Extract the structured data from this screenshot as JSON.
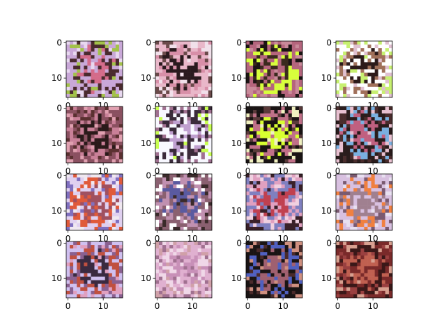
{
  "figure": {
    "grid": {
      "rows": 4,
      "cols": 4
    },
    "axes": {
      "xticks": [
        "0",
        "10"
      ],
      "yticks": [
        "0",
        "10"
      ],
      "tick_values": [
        0,
        10
      ],
      "pixels_per_side": 16
    },
    "panels": [
      {
        "description": "pixelated face, lavender/pink tones, bright accents at bottom-right",
        "palette": [
          "#c9a8d8",
          "#d46b8a",
          "#4a2a2e",
          "#e8d8f0",
          "#a3c24a"
        ]
      },
      {
        "description": "pixelated face, pink skin with dark hair left, light background",
        "palette": [
          "#e9b7c9",
          "#2a1a1e",
          "#d88fa8",
          "#f1e0ea",
          "#6b4a4a"
        ]
      },
      {
        "description": "pixelated face, dark hair, lime-green highlights",
        "palette": [
          "#b5657d",
          "#3b2a1e",
          "#d8ff3c",
          "#c98a9a",
          "#1c1414"
        ]
      },
      {
        "description": "pixelated face, white background with green and yellow, dark hair",
        "palette": [
          "#ffffff",
          "#2c1a1a",
          "#a0705a",
          "#c7f070",
          "#e0c0d0"
        ]
      },
      {
        "description": "pixelated face, dark brown hair, pinkish face",
        "palette": [
          "#8a5060",
          "#2a1a1a",
          "#c98098",
          "#e0a0b0",
          "#5a3030"
        ]
      },
      {
        "description": "pixelated face, white patch top-left, green accents, lavender",
        "palette": [
          "#f8f8ff",
          "#c0a0d0",
          "#3a2a3a",
          "#c8ff50",
          "#a07090"
        ]
      },
      {
        "description": "pixelated face, very dark with yellow/green highlights",
        "palette": [
          "#1a1414",
          "#d8ff30",
          "#c07088",
          "#f0f0c0",
          "#5a3a3a"
        ]
      },
      {
        "description": "pixelated face, dark background, pink face, blue accents",
        "palette": [
          "#2a1c1c",
          "#c06080",
          "#7ab0e0",
          "#e8c0d0",
          "#4a2c2c"
        ]
      },
      {
        "description": "pixelated face, light top, red/orange bottom",
        "palette": [
          "#e0d0f0",
          "#a05060",
          "#e05a3a",
          "#8070c0",
          "#f0e8f0"
        ]
      },
      {
        "description": "pixelated face, brown hair, lavender and blue tones, white corner",
        "palette": [
          "#8a6070",
          "#5a5aa0",
          "#c090b0",
          "#3a2a2a",
          "#ffffff"
        ]
      },
      {
        "description": "pixelated face, blue-violet and red tones",
        "palette": [
          "#8080c0",
          "#c04050",
          "#e0a0c0",
          "#3a2028",
          "#f0d0e0"
        ]
      },
      {
        "description": "pixelated face, lavender light tones, orange bottom-right",
        "palette": [
          "#d8c0e0",
          "#a08090",
          "#f08040",
          "#e8e0f0",
          "#7a5a70"
        ]
      },
      {
        "description": "pixelated face, lavender left, dark hair, red-orange bottom",
        "palette": [
          "#d0c0f0",
          "#3a2a40",
          "#c05040",
          "#e0a0c0",
          "#8a6090"
        ]
      },
      {
        "description": "pixelated face, pink/lilac soft tones",
        "palette": [
          "#e0b0d0",
          "#c890b8",
          "#f0d8e8",
          "#a07090",
          "#d0a0a8"
        ]
      },
      {
        "description": "pixelated face, black hair, blue accent, brown skin",
        "palette": [
          "#1a1414",
          "#a06070",
          "#5060c0",
          "#d09080",
          "#4a2a2a"
        ]
      },
      {
        "description": "pixelated face, dark red background, brown-red tones",
        "palette": [
          "#7a2a2a",
          "#c06050",
          "#3a1818",
          "#d8a090",
          "#9a4040"
        ]
      }
    ]
  }
}
